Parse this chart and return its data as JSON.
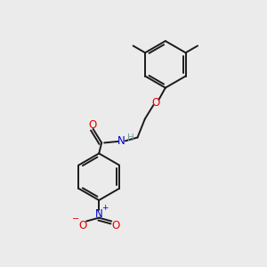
{
  "background_color": "#ebebeb",
  "bond_color": "#1a1a1a",
  "atom_colors": {
    "O": "#e60000",
    "N_blue": "#0000cc",
    "N_amide": "#0000cc",
    "H": "#7a9a9a",
    "C": "#1a1a1a"
  },
  "lw": 1.4,
  "figsize": [
    3.0,
    3.0
  ],
  "dpi": 100
}
